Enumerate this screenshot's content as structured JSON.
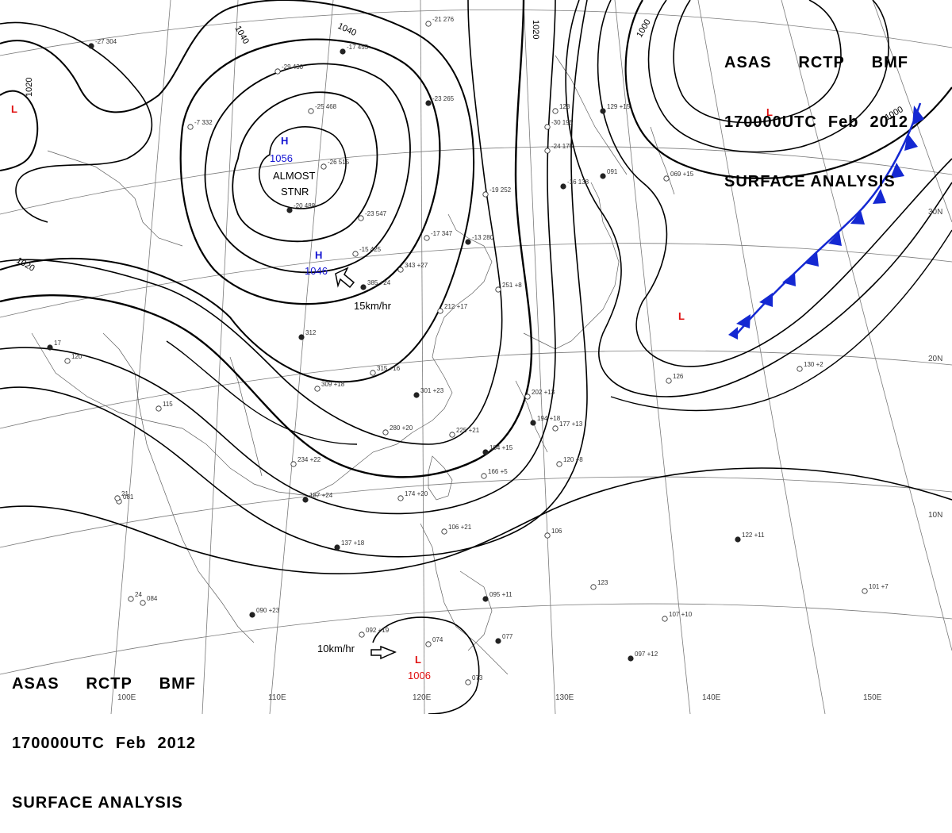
{
  "header": {
    "line1": [
      "ASAS",
      "RCTP",
      "BMF"
    ],
    "line2": [
      "170000UTC",
      "Feb",
      "2012"
    ],
    "line3": "SURFACE ANALYSIS"
  },
  "isobar_labels": [
    "1040",
    "1040",
    "1020",
    "1000",
    "1000",
    "1020",
    "1020"
  ],
  "lon_labels": [
    "100E",
    "110E",
    "120E",
    "130E",
    "140E",
    "150E"
  ],
  "lat_labels": [
    "30N",
    "20N",
    "10N"
  ],
  "pressure_centers": [
    {
      "letter": "H",
      "value": "1056",
      "note1": "ALMOST",
      "note2": "STNR",
      "color": "#1414d2"
    },
    {
      "letter": "H",
      "value": "1046",
      "motion": "15km/hr",
      "color": "#1414d2"
    },
    {
      "letter": "L",
      "value": "",
      "color": "#e01010"
    },
    {
      "letter": "L",
      "value": "",
      "color": "#e01010"
    },
    {
      "letter": "L",
      "value": "",
      "color": "#e01010"
    },
    {
      "letter": "L",
      "value": "1006",
      "motion": "10km/hr",
      "color": "#e01010"
    }
  ],
  "stations": [
    "-27 304",
    "-7 332",
    "-29 430",
    "-17 455",
    "-25 468",
    "-26 515",
    "-20 488",
    "-23 547",
    "-21 276",
    "-23 265",
    "-30 195",
    "-24 175",
    "-16 138",
    "-19 252",
    "-17 347",
    "-13 280",
    "-15 425",
    "343 +27",
    "385 +24",
    "212 +17",
    "251 +8",
    "312",
    "315 +16",
    "309 +18",
    "301 +23",
    "280 +20",
    "225 +21",
    "184 +15",
    "166 +5",
    "234 +22",
    "187 +24",
    "174 +20",
    "202 +13",
    "194 +18",
    "177 +13",
    "120 +8",
    "137 +18",
    "081",
    "084",
    "090 +23",
    "092 +19",
    "074",
    "077",
    "073",
    "106 +21",
    "095 +11",
    "106",
    "123",
    "122 +11",
    "101 +7",
    "107 +10",
    "097 +12",
    "126",
    "130 +2",
    "091",
    "069 +15",
    "128",
    "129 +15",
    "115",
    "120",
    "17",
    "21",
    "24"
  ],
  "colors": {
    "front": "#1428d2",
    "high": "#1414d2",
    "low": "#e01010",
    "isobar": "#000000",
    "coast": "#555555"
  }
}
